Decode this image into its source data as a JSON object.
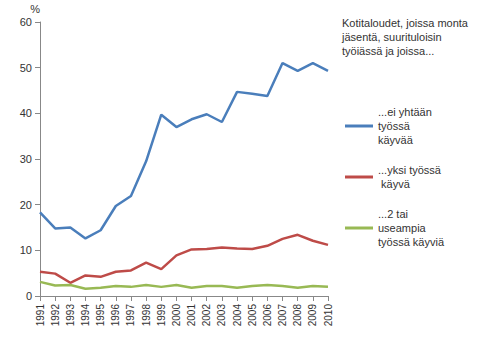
{
  "chart_data": {
    "type": "line",
    "y_label": "%",
    "legend_title": "Kotitaloudet, joissa monta jäsentä, suurituloisin työiässä ja joissa...",
    "categories": [
      "1991",
      "1992",
      "1993",
      "1994",
      "1995",
      "1996",
      "1997",
      "1998",
      "1999",
      "2000",
      "2001",
      "2002",
      "2003",
      "2004",
      "2005",
      "2006",
      "2007",
      "2008",
      "2009",
      "2010"
    ],
    "series": [
      {
        "name": "...ei yhtään työssä käyvää",
        "color": "#4a7ebb",
        "values": [
          18.3,
          14.8,
          15.0,
          12.6,
          14.4,
          19.7,
          21.9,
          29.5,
          39.7,
          37.0,
          38.7,
          39.8,
          38.1,
          44.7,
          44.3,
          43.8,
          51.0,
          49.3,
          51.0,
          49.3
        ]
      },
      {
        "name": "...yksi työssä käyvä",
        "color": "#be4b48",
        "values": [
          5.3,
          4.9,
          2.9,
          4.5,
          4.2,
          5.3,
          5.6,
          7.3,
          5.9,
          8.9,
          10.2,
          10.3,
          10.6,
          10.4,
          10.3,
          11.0,
          12.5,
          13.4,
          12.1,
          11.2
        ]
      },
      {
        "name": "...2 tai useampia työssä käyviä",
        "color": "#98b954",
        "values": [
          3.1,
          2.3,
          2.4,
          1.6,
          1.8,
          2.2,
          2.0,
          2.4,
          2.0,
          2.4,
          1.8,
          2.2,
          2.2,
          1.8,
          2.2,
          2.4,
          2.2,
          1.8,
          2.2,
          2.0
        ]
      }
    ],
    "ylim": [
      0,
      60
    ],
    "yticks": [
      0,
      10,
      20,
      30,
      40,
      50,
      60
    ],
    "grid": false,
    "legend": "right"
  }
}
